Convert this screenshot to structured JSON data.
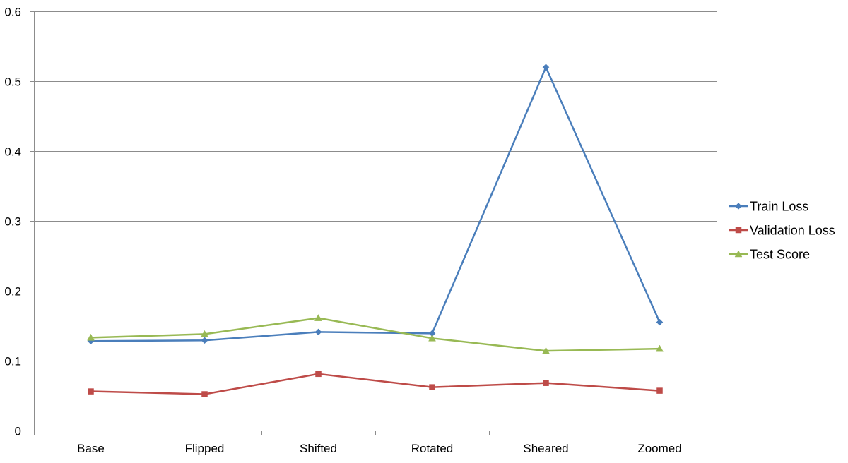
{
  "chart_data": {
    "type": "line",
    "title": "",
    "xlabel": "",
    "ylabel": "",
    "categories": [
      "Base",
      "Flipped",
      "Shifted",
      "Rotated",
      "Sheared",
      "Zoomed"
    ],
    "ylim": [
      0,
      0.6
    ],
    "yticks": [
      "0",
      "0.1",
      "0.2",
      "0.3",
      "0.4",
      "0.5",
      "0.6"
    ],
    "ytick_values": [
      0,
      0.1,
      0.2,
      0.3,
      0.4,
      0.5,
      0.6
    ],
    "grid": true,
    "legend_position": "right",
    "series": [
      {
        "name": "Train Loss",
        "color": "#4A7EBB",
        "marker": "diamond",
        "values": [
          0.128,
          0.129,
          0.141,
          0.139,
          0.52,
          0.155
        ]
      },
      {
        "name": "Validation Loss",
        "color": "#BE4B48",
        "marker": "square",
        "values": [
          0.056,
          0.052,
          0.081,
          0.062,
          0.068,
          0.057
        ]
      },
      {
        "name": "Test Score",
        "color": "#98B954",
        "marker": "triangle",
        "values": [
          0.133,
          0.138,
          0.161,
          0.132,
          0.114,
          0.117
        ]
      }
    ]
  }
}
